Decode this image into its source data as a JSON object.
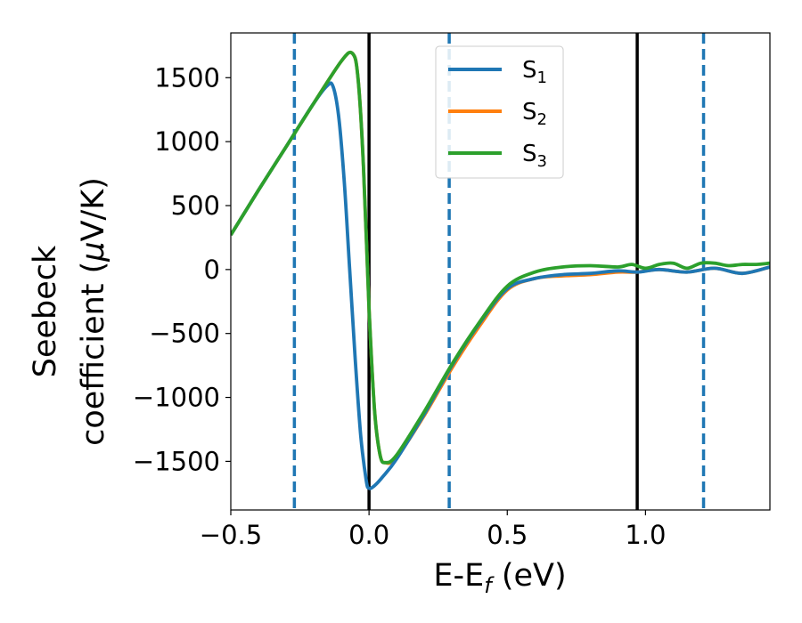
{
  "chart_data": {
    "type": "line",
    "xlabel": {
      "main": "E-E",
      "sub": "f",
      "suffix": " (eV)"
    },
    "ylabel": {
      "line1": "Seebeck",
      "line2_prefix": "coefficient  (",
      "mu": "μ",
      "line2_suffix": "V/K)"
    },
    "xlim": [
      -0.5,
      1.45
    ],
    "ylim": [
      -1880,
      1850
    ],
    "xticks": [
      -0.5,
      0.0,
      0.5,
      1.0
    ],
    "xtick_labels": [
      "−0.5",
      "0.0",
      "0.5",
      "1.0"
    ],
    "yticks": [
      -1500,
      -1000,
      -500,
      0,
      500,
      1000,
      1500
    ],
    "ytick_labels": [
      "−1500",
      "−1000",
      "−500",
      "0",
      "500",
      "1000",
      "1500"
    ],
    "grid": false,
    "legend_position": "top-center",
    "vlines": [
      {
        "x": 0.0,
        "style": "solid",
        "color": "#000000"
      },
      {
        "x": 0.97,
        "style": "solid",
        "color": "#000000"
      },
      {
        "x": -0.27,
        "style": "dashed",
        "color": "#1f77b4"
      },
      {
        "x": 0.29,
        "style": "dashed",
        "color": "#1f77b4"
      },
      {
        "x": 1.21,
        "style": "dashed",
        "color": "#1f77b4"
      }
    ],
    "series": [
      {
        "name": "S",
        "sub": "1",
        "color": "#1f77b4",
        "x": [
          -0.5,
          -0.4,
          -0.3,
          -0.2,
          -0.15,
          -0.13,
          -0.11,
          -0.09,
          -0.07,
          -0.05,
          -0.03,
          -0.01,
          0.0,
          0.02,
          0.05,
          0.1,
          0.2,
          0.3,
          0.4,
          0.5,
          0.6,
          0.7,
          0.8,
          0.9,
          0.97,
          1.05,
          1.15,
          1.25,
          1.35,
          1.45
        ],
        "y": [
          270,
          620,
          960,
          1300,
          1440,
          1430,
          1200,
          700,
          0,
          -700,
          -1300,
          -1650,
          -1710,
          -1690,
          -1620,
          -1480,
          -1130,
          -750,
          -420,
          -150,
          -70,
          -40,
          -30,
          -10,
          -20,
          0,
          -20,
          10,
          -30,
          20
        ]
      },
      {
        "name": "S",
        "sub": "2",
        "color": "#ff7f0e",
        "x": [
          -0.5,
          -0.4,
          -0.3,
          -0.2,
          -0.1,
          -0.06,
          -0.04,
          -0.02,
          0.0,
          0.02,
          0.04,
          0.06,
          0.1,
          0.2,
          0.3,
          0.4,
          0.5,
          0.6,
          0.7,
          0.8,
          0.9,
          0.97,
          1.05,
          1.15,
          1.25,
          1.35,
          1.45
        ],
        "y": [
          270,
          620,
          960,
          1300,
          1630,
          1690,
          1500,
          800,
          -300,
          -1100,
          -1450,
          -1510,
          -1470,
          -1140,
          -770,
          -440,
          -160,
          -70,
          -50,
          -40,
          -20,
          -20,
          0,
          -20,
          10,
          -30,
          20
        ]
      },
      {
        "name": "S",
        "sub": "3",
        "color": "#2ca02c",
        "x": [
          -0.5,
          -0.4,
          -0.3,
          -0.2,
          -0.1,
          -0.06,
          -0.04,
          -0.02,
          0.0,
          0.02,
          0.04,
          0.06,
          0.1,
          0.2,
          0.3,
          0.4,
          0.5,
          0.6,
          0.7,
          0.8,
          0.9,
          0.95,
          1.0,
          1.05,
          1.1,
          1.15,
          1.2,
          1.25,
          1.3,
          1.35,
          1.4,
          1.45
        ],
        "y": [
          270,
          620,
          960,
          1300,
          1630,
          1690,
          1500,
          800,
          -300,
          -1100,
          -1450,
          -1510,
          -1450,
          -1110,
          -740,
          -410,
          -130,
          -20,
          20,
          30,
          20,
          40,
          10,
          40,
          50,
          10,
          50,
          50,
          30,
          40,
          40,
          50
        ]
      }
    ]
  }
}
